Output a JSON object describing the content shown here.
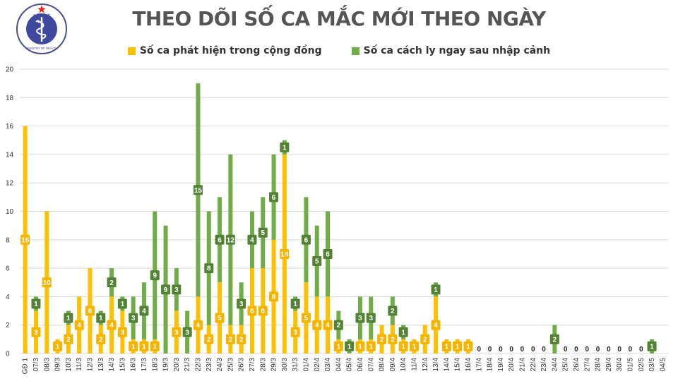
{
  "logo": {
    "top_text": "BỘ Y TẾ",
    "bottom_text": "MINISTRY OF HEALTH"
  },
  "colors": {
    "community": "#FFC000",
    "quarantine": "#70AD47",
    "grid": "#D9D9D9",
    "label_bg_community": "#F4B400",
    "label_bg_quarantine": "#548235"
  },
  "chart_data": {
    "type": "bar",
    "stacked": true,
    "title": "THEO DÕI SỐ CA MẮC MỚI THEO NGÀY",
    "ylim": [
      0,
      20
    ],
    "yticks": [
      0,
      2,
      4,
      6,
      8,
      10,
      12,
      14,
      16,
      18,
      20
    ],
    "grid": true,
    "legend_position": "top-center",
    "x": [
      "GĐ 1",
      "07/3",
      "08/3",
      "09/3",
      "10/3",
      "11/3",
      "12/3",
      "13/3",
      "14/3",
      "15/3",
      "16/3",
      "17/3",
      "18/3",
      "19/3",
      "20/3",
      "21/3",
      "22/3",
      "23/3",
      "24/3",
      "25/3",
      "26/3",
      "27/3",
      "28/3",
      "29/3",
      "30/3",
      "31/3",
      "01/4",
      "02/4",
      "03/4",
      "04/4",
      "05/4",
      "06/4",
      "07/4",
      "08/4",
      "09/4",
      "10/4",
      "11/4",
      "12/4",
      "13/4",
      "14/4",
      "15/4",
      "16/4",
      "17/4",
      "18/4",
      "19/4",
      "20/4",
      "21/4",
      "22/4",
      "23/4",
      "24/4",
      "25/4",
      "26/4",
      "27/4",
      "28/4",
      "29/4",
      "30/4",
      "01/5",
      "02/5",
      "03/5",
      "04/5"
    ],
    "series": [
      {
        "name": "Số ca phát hiện trong cộng đồng",
        "color": "#FFC000",
        "values": [
          16,
          3,
          10,
          1,
          2,
          4,
          6,
          2,
          4,
          3,
          1,
          1,
          1,
          0,
          3,
          0,
          4,
          2,
          5,
          2,
          2,
          6,
          6,
          8,
          14,
          3,
          5,
          4,
          4,
          1,
          0,
          1,
          1,
          2,
          2,
          1,
          1,
          2,
          4,
          1,
          1,
          1,
          0,
          0,
          0,
          0,
          0,
          0,
          0,
          0,
          0,
          0,
          0,
          0,
          0,
          0,
          0,
          0,
          0,
          0
        ]
      },
      {
        "name": "Số ca cách ly ngay sau nhập cảnh",
        "color": "#70AD47",
        "values": [
          0,
          1,
          0,
          0,
          1,
          0,
          0,
          1,
          2,
          1,
          3,
          4,
          9,
          9,
          3,
          3,
          15,
          8,
          6,
          12,
          3,
          4,
          5,
          6,
          1,
          1,
          6,
          5,
          6,
          2,
          1,
          3,
          3,
          0,
          2,
          1,
          0,
          0,
          1,
          0,
          0,
          0,
          0,
          0,
          0,
          0,
          0,
          0,
          0,
          2,
          0,
          0,
          0,
          0,
          0,
          0,
          0,
          0,
          1,
          0
        ]
      }
    ],
    "zero_labels": [
      "17/4",
      "18/4",
      "19/4",
      "20/4",
      "21/4",
      "22/4",
      "23/4",
      "25/4",
      "26/4",
      "27/4",
      "28/4",
      "29/4",
      "30/4",
      "01/5",
      "02/5"
    ]
  }
}
